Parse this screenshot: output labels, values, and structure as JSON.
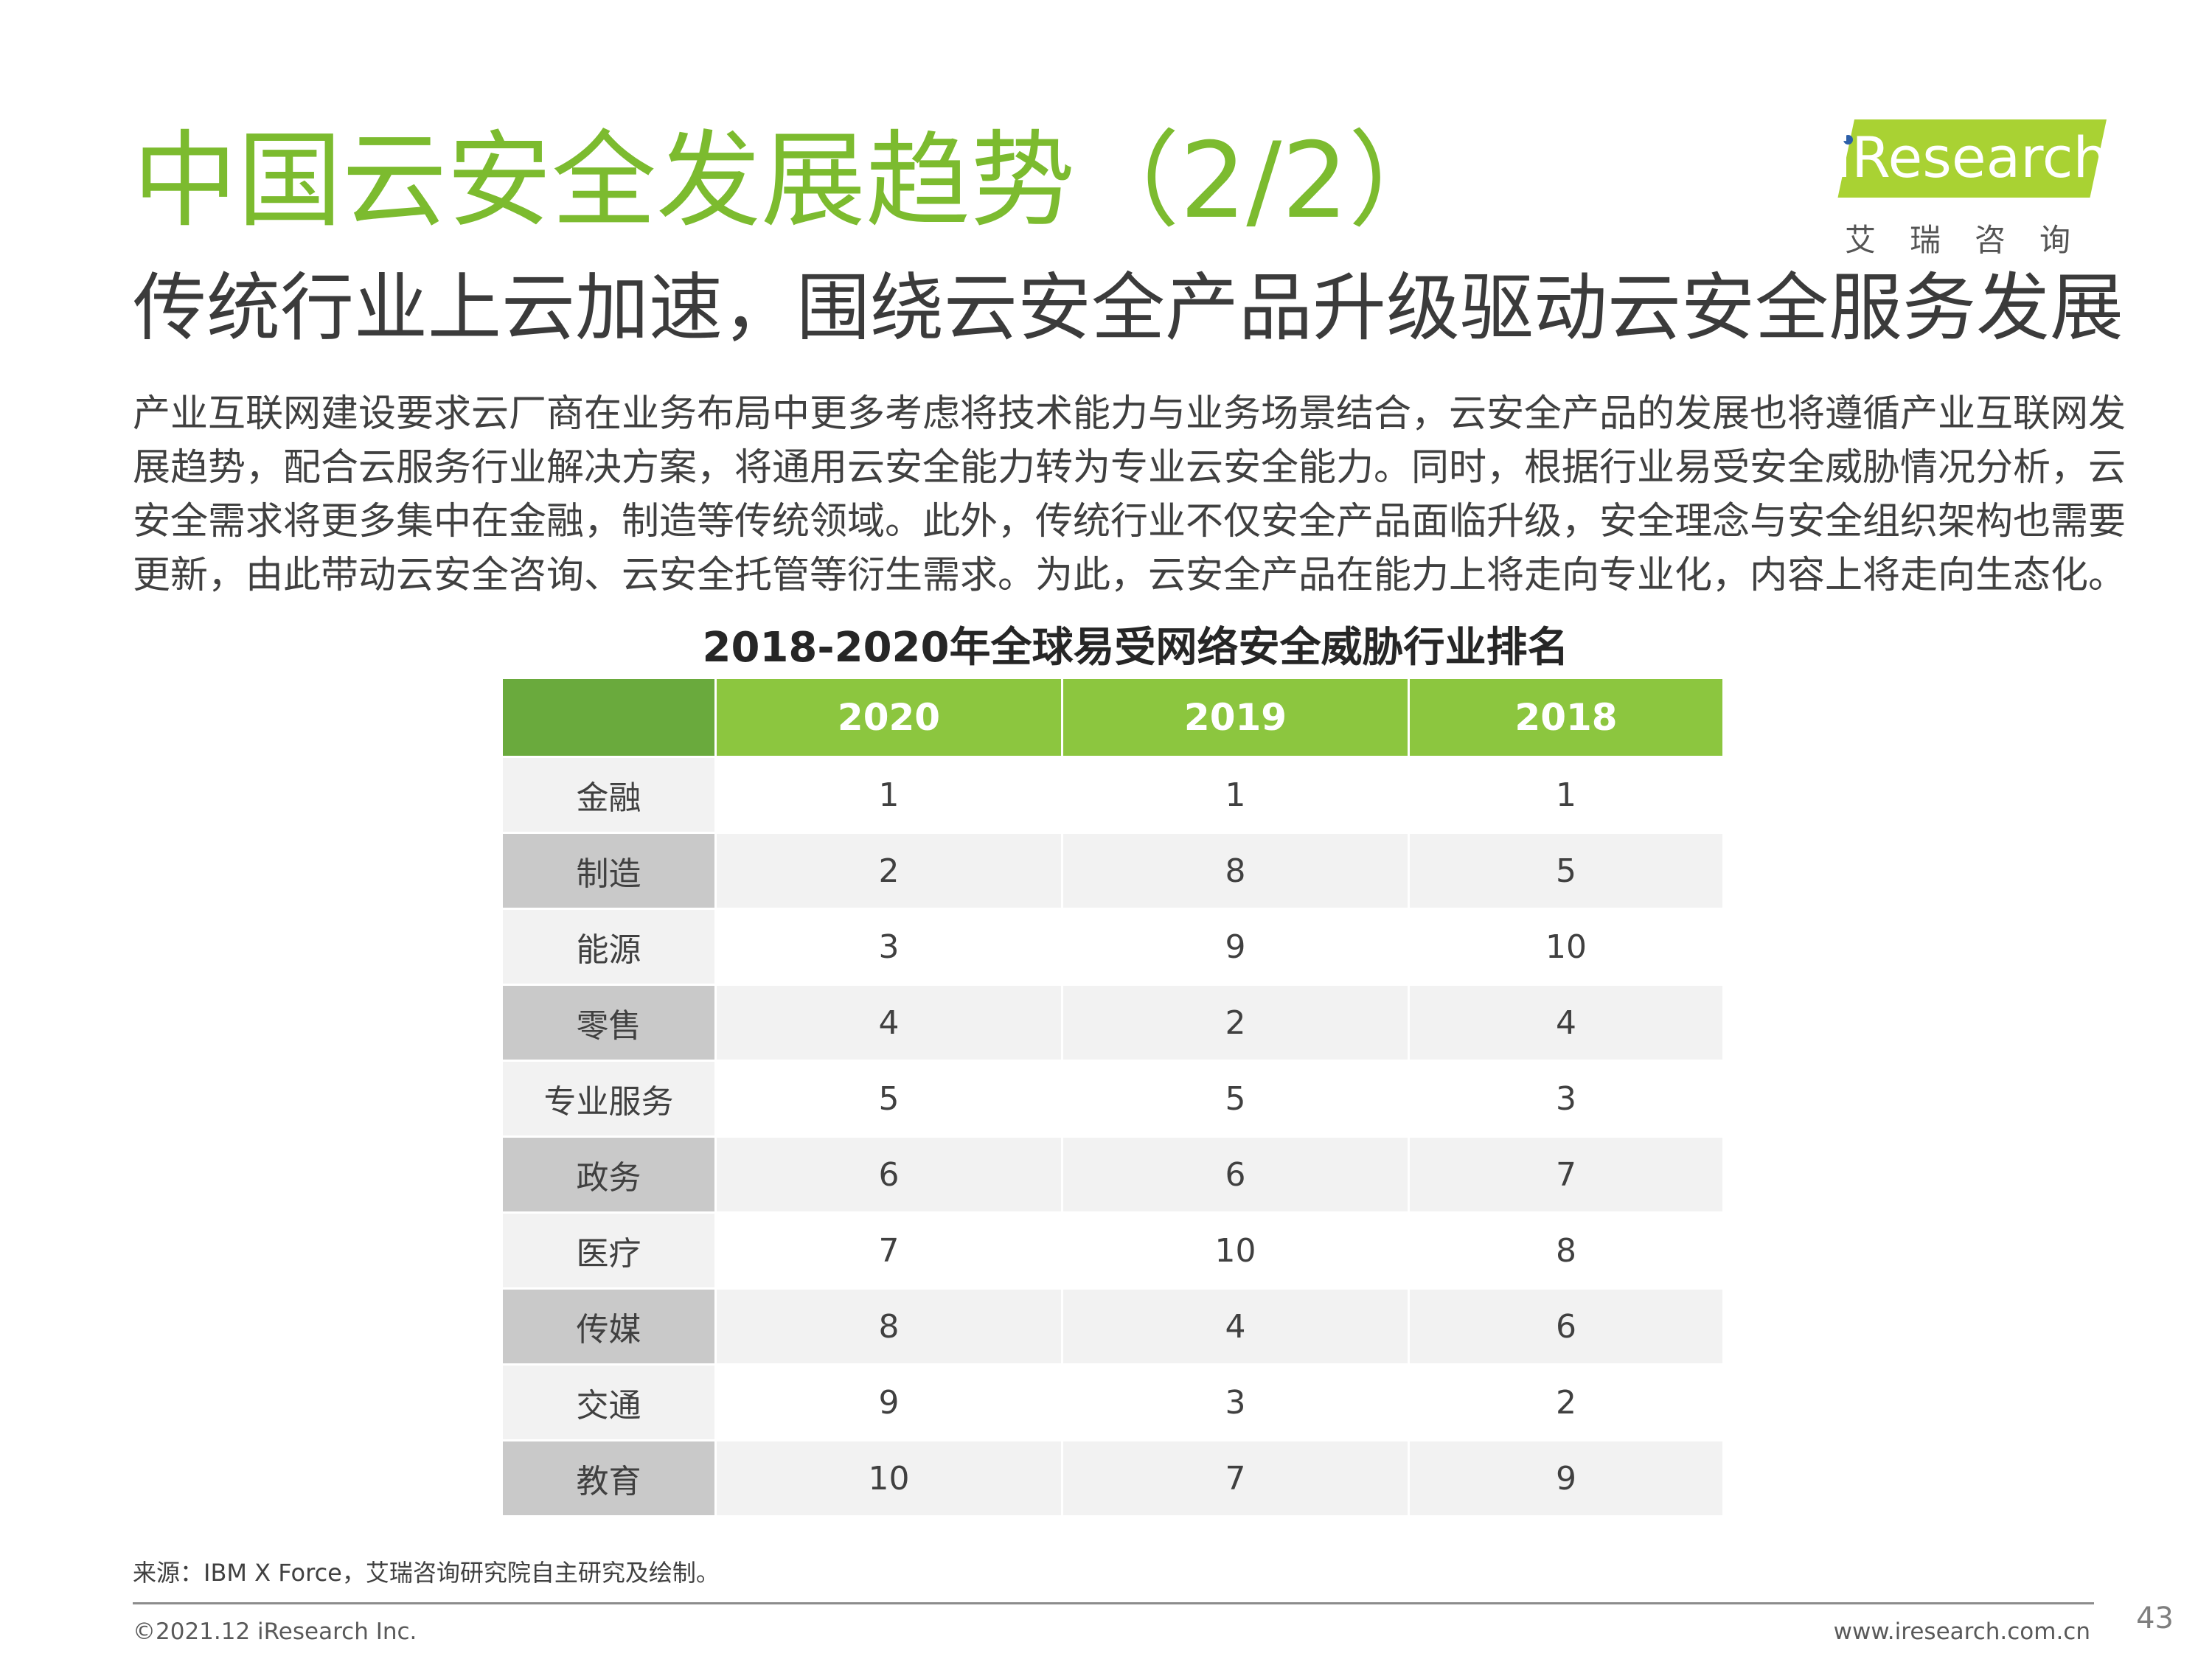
{
  "header": {
    "title": "中国云安全发展趋势（2/2）",
    "subtitle": "传统行业上云加速，围绕云安全产品升级驱动云安全服务发展"
  },
  "logo": {
    "wordmark": "iResearch",
    "chinese": "艾瑞咨询"
  },
  "intro": {
    "lines": [
      "产业互联网建设要求云厂商在业务布局中更多考虑将技术能力与业务场景结合，云安全产品的发展也将遵循产业互联网发",
      "展趋势，配合云服务行业解决方案，将通用云安全能力转为专业云安全能力。同时，根据行业易受安全威胁情况分析，云",
      "安全需求将更多集中在金融，制造等传统领域。此外，传统行业不仅安全产品面临升级，安全理念与安全组织架构也需要",
      "更新，由此带动云安全咨询、云安全托管等衍生需求。为此，云安全产品在能力上将走向专业化，内容上将走向生态化。"
    ]
  },
  "table": {
    "title": "2018-2020年全球易受网络安全威胁行业排名",
    "columns": [
      "",
      "2020",
      "2019",
      "2018"
    ],
    "rows": [
      {
        "industry": "金融",
        "y2020": "1",
        "y2019": "1",
        "y2018": "1"
      },
      {
        "industry": "制造",
        "y2020": "2",
        "y2019": "8",
        "y2018": "5"
      },
      {
        "industry": "能源",
        "y2020": "3",
        "y2019": "9",
        "y2018": "10"
      },
      {
        "industry": "零售",
        "y2020": "4",
        "y2019": "2",
        "y2018": "4"
      },
      {
        "industry": "专业服务",
        "y2020": "5",
        "y2019": "5",
        "y2018": "3"
      },
      {
        "industry": "政务",
        "y2020": "6",
        "y2019": "6",
        "y2018": "7"
      },
      {
        "industry": "医疗",
        "y2020": "7",
        "y2019": "10",
        "y2018": "8"
      },
      {
        "industry": "传媒",
        "y2020": "8",
        "y2019": "4",
        "y2018": "6"
      },
      {
        "industry": "交通",
        "y2020": "9",
        "y2019": "3",
        "y2018": "2"
      },
      {
        "industry": "教育",
        "y2020": "10",
        "y2019": "7",
        "y2018": "9"
      }
    ]
  },
  "footer": {
    "source": "来源：IBM X Force，艾瑞咨询研究院自主研究及绘制。",
    "copyright": "©2021.12 iResearch Inc.",
    "url": "www.iresearch.com.cn",
    "page": "43"
  },
  "colors": {
    "title_green": "#7cbb2f",
    "header_green": "#8cc63f",
    "corner_green": "#6aaa3d",
    "logo_green": "#a9d233"
  }
}
